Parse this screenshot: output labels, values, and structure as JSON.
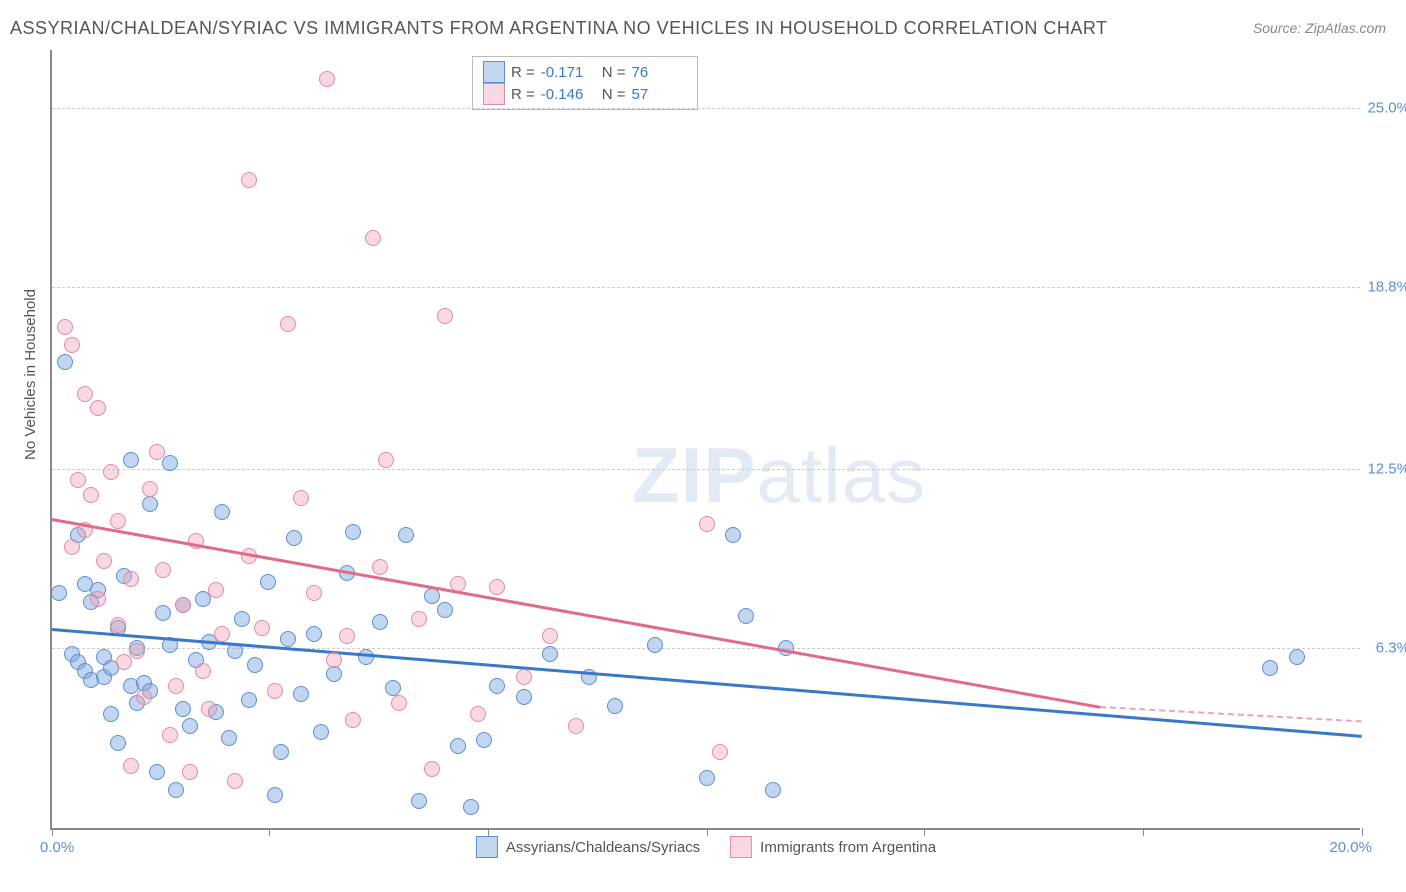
{
  "title": "ASSYRIAN/CHALDEAN/SYRIAC VS IMMIGRANTS FROM ARGENTINA NO VEHICLES IN HOUSEHOLD CORRELATION CHART",
  "source": "Source: ZipAtlas.com",
  "watermark_a": "ZIP",
  "watermark_b": "atlas",
  "ylabel": "No Vehicles in Household",
  "chart": {
    "type": "scatter",
    "xlim": [
      0,
      20
    ],
    "ylim": [
      0,
      27
    ],
    "xticks_pct": [
      0,
      16.6,
      33.3,
      50,
      66.6,
      83.3,
      100
    ],
    "xtick_label_left": "0.0%",
    "xtick_label_right": "20.0%",
    "grid_rows": [
      {
        "y": 6.3,
        "label": "6.3%"
      },
      {
        "y": 12.5,
        "label": "12.5%"
      },
      {
        "y": 18.8,
        "label": "18.8%"
      },
      {
        "y": 25.0,
        "label": "25.0%"
      }
    ],
    "background_color": "#ffffff",
    "grid_color": "#cccccc",
    "axis_color": "#888888",
    "marker_radius": 8,
    "colors": {
      "blue_fill": "rgba(120,165,220,0.45)",
      "blue_stroke": "#5b8fd6",
      "pink_fill": "rgba(240,160,180,0.40)",
      "pink_stroke": "#e48aa4",
      "trend_blue": "#3a78c9",
      "trend_pink": "#e06a8a",
      "tick_text": "#5b8fd6"
    },
    "series": [
      {
        "name": "Assyrians/Chaldeans/Syriacs",
        "color": "blue",
        "R": "-0.171",
        "N": "76",
        "trend": {
          "x1": 0,
          "y1": 7.0,
          "x2": 20,
          "y2": 3.3,
          "dashed_from": null
        },
        "points": [
          [
            0.1,
            8.2
          ],
          [
            0.2,
            16.2
          ],
          [
            0.3,
            6.1
          ],
          [
            0.4,
            5.8
          ],
          [
            0.4,
            10.2
          ],
          [
            0.5,
            5.5
          ],
          [
            0.5,
            8.5
          ],
          [
            0.6,
            7.9
          ],
          [
            0.6,
            5.2
          ],
          [
            0.7,
            8.3
          ],
          [
            0.8,
            6.0
          ],
          [
            0.8,
            5.3
          ],
          [
            0.9,
            4.0
          ],
          [
            0.9,
            5.6
          ],
          [
            1.0,
            7.0
          ],
          [
            1.0,
            3.0
          ],
          [
            1.1,
            8.8
          ],
          [
            1.2,
            12.8
          ],
          [
            1.2,
            5.0
          ],
          [
            1.3,
            4.4
          ],
          [
            1.3,
            6.3
          ],
          [
            1.4,
            5.1
          ],
          [
            1.5,
            11.3
          ],
          [
            1.5,
            4.8
          ],
          [
            1.6,
            2.0
          ],
          [
            1.7,
            7.5
          ],
          [
            1.8,
            6.4
          ],
          [
            1.8,
            12.7
          ],
          [
            1.9,
            1.4
          ],
          [
            2.0,
            7.8
          ],
          [
            2.0,
            4.2
          ],
          [
            2.1,
            3.6
          ],
          [
            2.2,
            5.9
          ],
          [
            2.3,
            8.0
          ],
          [
            2.4,
            6.5
          ],
          [
            2.5,
            4.1
          ],
          [
            2.6,
            11.0
          ],
          [
            2.7,
            3.2
          ],
          [
            2.8,
            6.2
          ],
          [
            2.9,
            7.3
          ],
          [
            3.0,
            4.5
          ],
          [
            3.1,
            5.7
          ],
          [
            3.3,
            8.6
          ],
          [
            3.4,
            1.2
          ],
          [
            3.5,
            2.7
          ],
          [
            3.6,
            6.6
          ],
          [
            3.7,
            10.1
          ],
          [
            3.8,
            4.7
          ],
          [
            4.0,
            6.8
          ],
          [
            4.1,
            3.4
          ],
          [
            4.3,
            5.4
          ],
          [
            4.5,
            8.9
          ],
          [
            4.6,
            10.3
          ],
          [
            4.8,
            6.0
          ],
          [
            5.0,
            7.2
          ],
          [
            5.2,
            4.9
          ],
          [
            5.4,
            10.2
          ],
          [
            5.6,
            1.0
          ],
          [
            5.8,
            8.1
          ],
          [
            6.0,
            7.6
          ],
          [
            6.2,
            2.9
          ],
          [
            6.4,
            0.8
          ],
          [
            6.6,
            3.1
          ],
          [
            6.8,
            5.0
          ],
          [
            7.2,
            4.6
          ],
          [
            7.6,
            6.1
          ],
          [
            8.2,
            5.3
          ],
          [
            8.6,
            4.3
          ],
          [
            9.2,
            6.4
          ],
          [
            10.0,
            1.8
          ],
          [
            10.4,
            10.2
          ],
          [
            10.6,
            7.4
          ],
          [
            11.0,
            1.4
          ],
          [
            11.2,
            6.3
          ],
          [
            18.6,
            5.6
          ],
          [
            19.0,
            6.0
          ]
        ]
      },
      {
        "name": "Immigrants from Argentina",
        "color": "pink",
        "R": "-0.146",
        "N": "57",
        "trend": {
          "x1": 0,
          "y1": 10.8,
          "x2": 16,
          "y2": 4.3,
          "dashed_from": 16,
          "dashed_to": 20,
          "dashed_y2": 3.8
        },
        "points": [
          [
            0.2,
            17.4
          ],
          [
            0.3,
            16.8
          ],
          [
            0.3,
            9.8
          ],
          [
            0.4,
            12.1
          ],
          [
            0.5,
            10.4
          ],
          [
            0.5,
            15.1
          ],
          [
            0.6,
            11.6
          ],
          [
            0.7,
            14.6
          ],
          [
            0.7,
            8.0
          ],
          [
            0.8,
            9.3
          ],
          [
            0.9,
            12.4
          ],
          [
            1.0,
            10.7
          ],
          [
            1.0,
            7.1
          ],
          [
            1.1,
            5.8
          ],
          [
            1.2,
            2.2
          ],
          [
            1.2,
            8.7
          ],
          [
            1.3,
            6.2
          ],
          [
            1.4,
            4.6
          ],
          [
            1.5,
            11.8
          ],
          [
            1.6,
            13.1
          ],
          [
            1.7,
            9.0
          ],
          [
            1.8,
            3.3
          ],
          [
            1.9,
            5.0
          ],
          [
            2.0,
            7.8
          ],
          [
            2.1,
            2.0
          ],
          [
            2.2,
            10.0
          ],
          [
            2.3,
            5.5
          ],
          [
            2.4,
            4.2
          ],
          [
            2.5,
            8.3
          ],
          [
            2.6,
            6.8
          ],
          [
            2.8,
            1.7
          ],
          [
            3.0,
            9.5
          ],
          [
            3.0,
            22.5
          ],
          [
            3.2,
            7.0
          ],
          [
            3.4,
            4.8
          ],
          [
            3.6,
            17.5
          ],
          [
            3.8,
            11.5
          ],
          [
            4.0,
            8.2
          ],
          [
            4.2,
            26.0
          ],
          [
            4.3,
            5.9
          ],
          [
            4.5,
            6.7
          ],
          [
            4.6,
            3.8
          ],
          [
            4.9,
            20.5
          ],
          [
            5.0,
            9.1
          ],
          [
            5.1,
            12.8
          ],
          [
            5.3,
            4.4
          ],
          [
            5.6,
            7.3
          ],
          [
            5.8,
            2.1
          ],
          [
            6.0,
            17.8
          ],
          [
            6.2,
            8.5
          ],
          [
            6.5,
            4.0
          ],
          [
            6.8,
            8.4
          ],
          [
            7.2,
            5.3
          ],
          [
            7.6,
            6.7
          ],
          [
            8.0,
            3.6
          ],
          [
            10.2,
            2.7
          ],
          [
            10.0,
            10.6
          ]
        ]
      }
    ]
  },
  "legend_stats": {
    "rows": [
      {
        "color": "blue",
        "R_label": "R =",
        "R": "-0.171",
        "N_label": "N =",
        "N": "76"
      },
      {
        "color": "pink",
        "R_label": "R =",
        "R": "-0.146",
        "N_label": "N =",
        "N": "57"
      }
    ]
  },
  "legend_bottom": [
    {
      "color": "blue",
      "label": "Assyrians/Chaldeans/Syriacs"
    },
    {
      "color": "pink",
      "label": "Immigrants from Argentina"
    }
  ]
}
